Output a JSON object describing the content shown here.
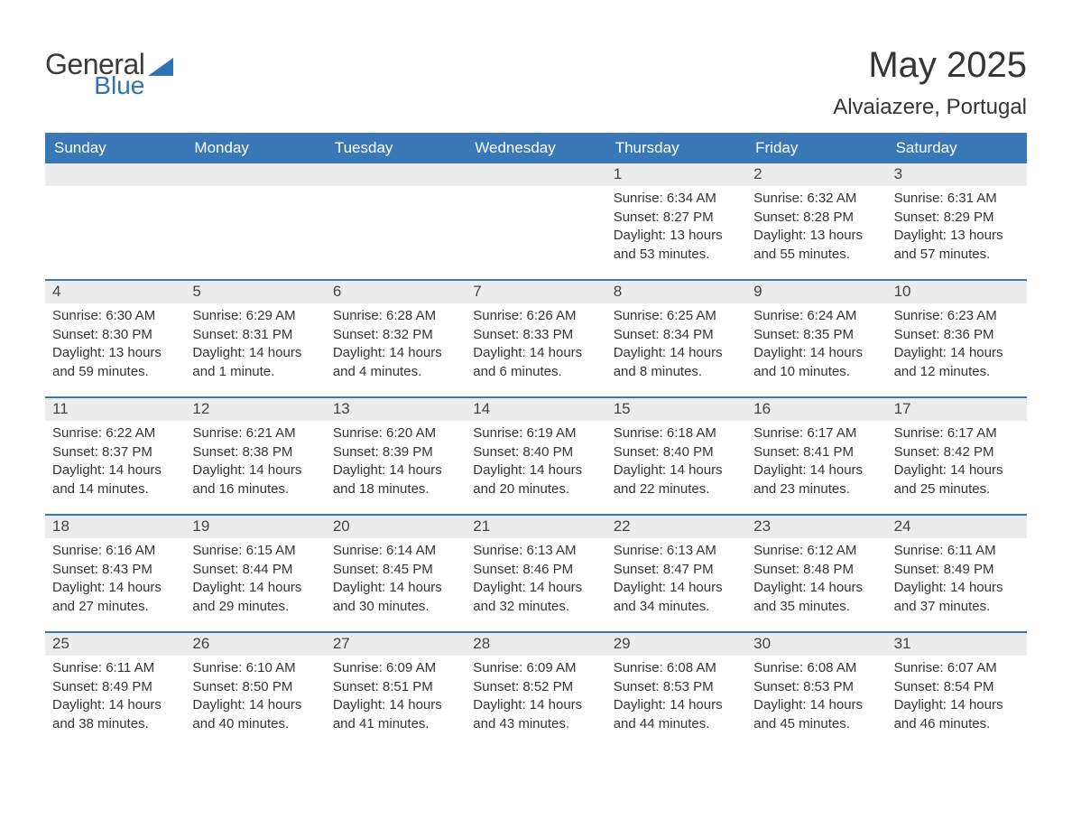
{
  "brand": {
    "word1": "General",
    "word2": "Blue",
    "triangle_color": "#2f72b6"
  },
  "title": "May 2025",
  "location": "Alvaiazere, Portugal",
  "colors": {
    "header_bg": "#3a77b7",
    "header_text": "#ffffff",
    "daynum_bg": "#ececec",
    "text": "#353535",
    "row_border": "#3a77b7",
    "page_bg": "#ffffff"
  },
  "weekdays": [
    "Sunday",
    "Monday",
    "Tuesday",
    "Wednesday",
    "Thursday",
    "Friday",
    "Saturday"
  ],
  "first_weekday_index": 4,
  "days": [
    {
      "n": 1,
      "sunrise": "6:34 AM",
      "sunset": "8:27 PM",
      "daylight": "13 hours and 53 minutes."
    },
    {
      "n": 2,
      "sunrise": "6:32 AM",
      "sunset": "8:28 PM",
      "daylight": "13 hours and 55 minutes."
    },
    {
      "n": 3,
      "sunrise": "6:31 AM",
      "sunset": "8:29 PM",
      "daylight": "13 hours and 57 minutes."
    },
    {
      "n": 4,
      "sunrise": "6:30 AM",
      "sunset": "8:30 PM",
      "daylight": "13 hours and 59 minutes."
    },
    {
      "n": 5,
      "sunrise": "6:29 AM",
      "sunset": "8:31 PM",
      "daylight": "14 hours and 1 minute."
    },
    {
      "n": 6,
      "sunrise": "6:28 AM",
      "sunset": "8:32 PM",
      "daylight": "14 hours and 4 minutes."
    },
    {
      "n": 7,
      "sunrise": "6:26 AM",
      "sunset": "8:33 PM",
      "daylight": "14 hours and 6 minutes."
    },
    {
      "n": 8,
      "sunrise": "6:25 AM",
      "sunset": "8:34 PM",
      "daylight": "14 hours and 8 minutes."
    },
    {
      "n": 9,
      "sunrise": "6:24 AM",
      "sunset": "8:35 PM",
      "daylight": "14 hours and 10 minutes."
    },
    {
      "n": 10,
      "sunrise": "6:23 AM",
      "sunset": "8:36 PM",
      "daylight": "14 hours and 12 minutes."
    },
    {
      "n": 11,
      "sunrise": "6:22 AM",
      "sunset": "8:37 PM",
      "daylight": "14 hours and 14 minutes."
    },
    {
      "n": 12,
      "sunrise": "6:21 AM",
      "sunset": "8:38 PM",
      "daylight": "14 hours and 16 minutes."
    },
    {
      "n": 13,
      "sunrise": "6:20 AM",
      "sunset": "8:39 PM",
      "daylight": "14 hours and 18 minutes."
    },
    {
      "n": 14,
      "sunrise": "6:19 AM",
      "sunset": "8:40 PM",
      "daylight": "14 hours and 20 minutes."
    },
    {
      "n": 15,
      "sunrise": "6:18 AM",
      "sunset": "8:40 PM",
      "daylight": "14 hours and 22 minutes."
    },
    {
      "n": 16,
      "sunrise": "6:17 AM",
      "sunset": "8:41 PM",
      "daylight": "14 hours and 23 minutes."
    },
    {
      "n": 17,
      "sunrise": "6:17 AM",
      "sunset": "8:42 PM",
      "daylight": "14 hours and 25 minutes."
    },
    {
      "n": 18,
      "sunrise": "6:16 AM",
      "sunset": "8:43 PM",
      "daylight": "14 hours and 27 minutes."
    },
    {
      "n": 19,
      "sunrise": "6:15 AM",
      "sunset": "8:44 PM",
      "daylight": "14 hours and 29 minutes."
    },
    {
      "n": 20,
      "sunrise": "6:14 AM",
      "sunset": "8:45 PM",
      "daylight": "14 hours and 30 minutes."
    },
    {
      "n": 21,
      "sunrise": "6:13 AM",
      "sunset": "8:46 PM",
      "daylight": "14 hours and 32 minutes."
    },
    {
      "n": 22,
      "sunrise": "6:13 AM",
      "sunset": "8:47 PM",
      "daylight": "14 hours and 34 minutes."
    },
    {
      "n": 23,
      "sunrise": "6:12 AM",
      "sunset": "8:48 PM",
      "daylight": "14 hours and 35 minutes."
    },
    {
      "n": 24,
      "sunrise": "6:11 AM",
      "sunset": "8:49 PM",
      "daylight": "14 hours and 37 minutes."
    },
    {
      "n": 25,
      "sunrise": "6:11 AM",
      "sunset": "8:49 PM",
      "daylight": "14 hours and 38 minutes."
    },
    {
      "n": 26,
      "sunrise": "6:10 AM",
      "sunset": "8:50 PM",
      "daylight": "14 hours and 40 minutes."
    },
    {
      "n": 27,
      "sunrise": "6:09 AM",
      "sunset": "8:51 PM",
      "daylight": "14 hours and 41 minutes."
    },
    {
      "n": 28,
      "sunrise": "6:09 AM",
      "sunset": "8:52 PM",
      "daylight": "14 hours and 43 minutes."
    },
    {
      "n": 29,
      "sunrise": "6:08 AM",
      "sunset": "8:53 PM",
      "daylight": "14 hours and 44 minutes."
    },
    {
      "n": 30,
      "sunrise": "6:08 AM",
      "sunset": "8:53 PM",
      "daylight": "14 hours and 45 minutes."
    },
    {
      "n": 31,
      "sunrise": "6:07 AM",
      "sunset": "8:54 PM",
      "daylight": "14 hours and 46 minutes."
    }
  ],
  "labels": {
    "sunrise": "Sunrise:",
    "sunset": "Sunset:",
    "daylight": "Daylight:"
  }
}
